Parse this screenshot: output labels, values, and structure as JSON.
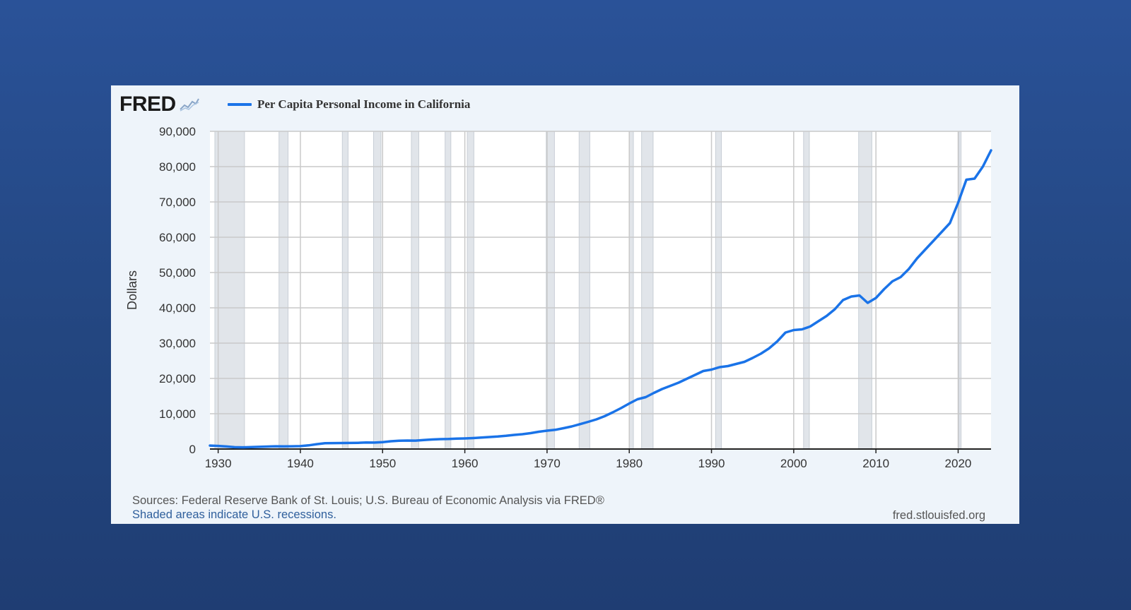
{
  "logo": {
    "text": "FRED",
    "mark": "®"
  },
  "footer": {
    "sources": "Sources: Federal Reserve Bank of St. Louis; U.S. Bureau of Economic Analysis via FRED®",
    "shaded_note": "Shaded areas indicate U.S. recessions.",
    "site": "fred.stlouisfed.org"
  },
  "chart_data": {
    "type": "line",
    "title": "",
    "xlabel": "",
    "ylabel": "Dollars",
    "legend_position": "top-left",
    "grid": true,
    "xlim": [
      1929,
      2024
    ],
    "ylim": [
      0,
      90000
    ],
    "x_ticks": [
      1930,
      1940,
      1950,
      1960,
      1970,
      1980,
      1990,
      2000,
      2010,
      2020
    ],
    "y_ticks": [
      0,
      10000,
      20000,
      30000,
      40000,
      50000,
      60000,
      70000,
      80000,
      90000
    ],
    "y_tick_labels": [
      "0",
      "10,000",
      "20,000",
      "30,000",
      "40,000",
      "50,000",
      "60,000",
      "70,000",
      "80,000",
      "90,000"
    ],
    "recessions": [
      [
        1929.6,
        1933.2
      ],
      [
        1937.4,
        1938.5
      ],
      [
        1945.1,
        1945.8
      ],
      [
        1948.9,
        1949.8
      ],
      [
        1953.5,
        1954.4
      ],
      [
        1957.6,
        1958.3
      ],
      [
        1960.3,
        1961.1
      ],
      [
        1969.9,
        1970.9
      ],
      [
        1973.9,
        1975.2
      ],
      [
        1980.0,
        1980.5
      ],
      [
        1981.5,
        1982.9
      ],
      [
        1990.5,
        1991.2
      ],
      [
        2001.2,
        2001.9
      ],
      [
        2007.9,
        2009.5
      ],
      [
        2020.1,
        2020.3
      ]
    ],
    "series": [
      {
        "name": "Per Capita Personal Income in California",
        "color": "#1a73e8",
        "x": [
          1929,
          1930,
          1931,
          1932,
          1933,
          1934,
          1935,
          1936,
          1937,
          1938,
          1939,
          1940,
          1941,
          1942,
          1943,
          1944,
          1945,
          1946,
          1947,
          1948,
          1949,
          1950,
          1951,
          1952,
          1953,
          1954,
          1955,
          1956,
          1957,
          1958,
          1959,
          1960,
          1961,
          1962,
          1963,
          1964,
          1965,
          1966,
          1967,
          1968,
          1969,
          1970,
          1971,
          1972,
          1973,
          1974,
          1975,
          1976,
          1977,
          1978,
          1979,
          1980,
          1981,
          1982,
          1983,
          1984,
          1985,
          1986,
          1987,
          1988,
          1989,
          1990,
          1991,
          1992,
          1993,
          1994,
          1995,
          1996,
          1997,
          1998,
          1999,
          2000,
          2001,
          2002,
          2003,
          2004,
          2005,
          2006,
          2007,
          2008,
          2009,
          2010,
          2011,
          2012,
          2013,
          2014,
          2015,
          2016,
          2017,
          2018,
          2019,
          2020,
          2021,
          2022,
          2023,
          2024
        ],
        "values": [
          990,
          880,
          720,
          520,
          470,
          540,
          620,
          700,
          780,
          750,
          780,
          830,
          1050,
          1380,
          1650,
          1680,
          1700,
          1720,
          1760,
          1850,
          1830,
          1950,
          2200,
          2350,
          2400,
          2380,
          2550,
          2700,
          2800,
          2850,
          2950,
          3000,
          3100,
          3250,
          3400,
          3550,
          3750,
          4000,
          4200,
          4500,
          4900,
          5200,
          5450,
          5900,
          6400,
          7050,
          7700,
          8400,
          9300,
          10400,
          11600,
          12900,
          14100,
          14700,
          15900,
          17000,
          17900,
          18800,
          19900,
          21000,
          22100,
          22500,
          23200,
          23500,
          24100,
          24700,
          25800,
          27000,
          28500,
          30500,
          33000,
          33700,
          33900,
          34700,
          36200,
          37700,
          39600,
          42200,
          43200,
          43500,
          41400,
          42800,
          45300,
          47500,
          48700,
          51000,
          54000,
          56500,
          59000,
          61500,
          64000,
          69800,
          76300,
          76600,
          80000,
          84600
        ]
      }
    ]
  }
}
